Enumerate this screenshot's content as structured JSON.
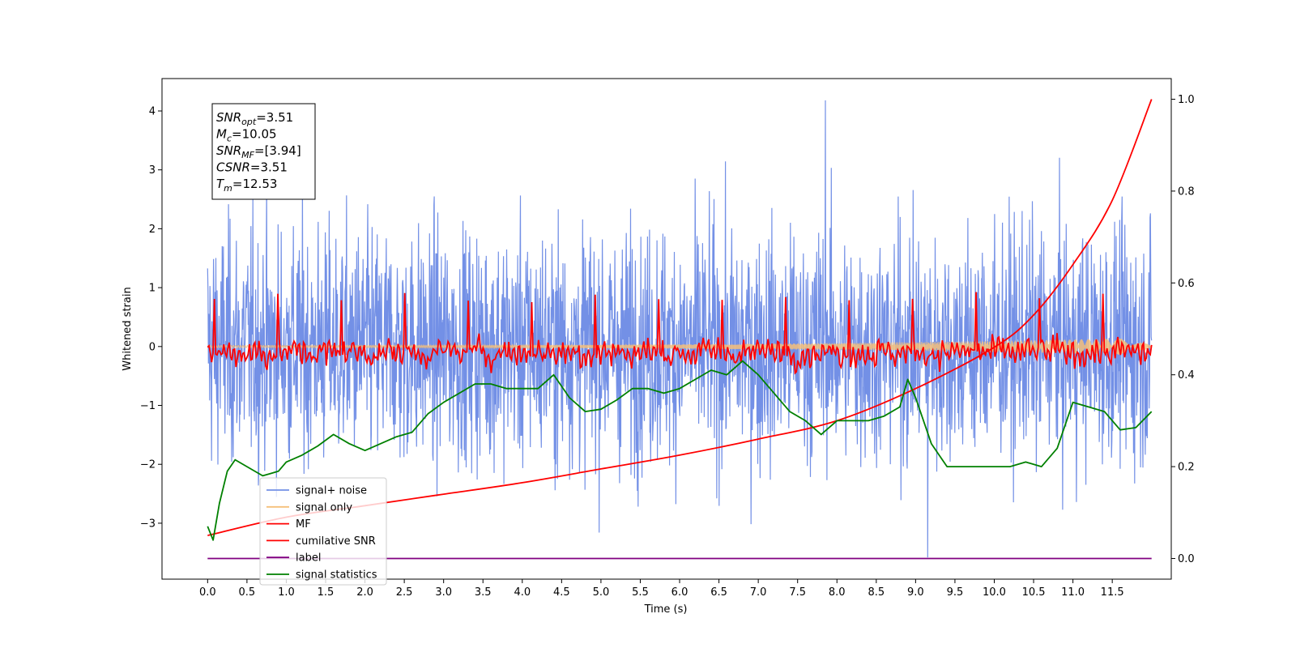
{
  "chart_data": {
    "type": "line",
    "xlabel": "Time (s)",
    "ylabel": "Whitened strain",
    "x_ticks": [
      "0.0",
      "0.5",
      "1.0",
      "1.5",
      "2.0",
      "2.5",
      "3.0",
      "3.5",
      "4.0",
      "4.5",
      "5.0",
      "5.5",
      "6.0",
      "6.5",
      "7.0",
      "7.5",
      "8.0",
      "8.5",
      "9.0",
      "9.5",
      "10.0",
      "10.5",
      "11.0",
      "11.5"
    ],
    "y_ticks_left": [
      "−3",
      "−2",
      "−1",
      "0",
      "1",
      "2",
      "3",
      "4"
    ],
    "y_ticks_right": [
      "0.0",
      "0.2",
      "0.4",
      "0.6",
      "0.8",
      "1.0"
    ],
    "xlim": [
      -0.58,
      12.25
    ],
    "ylim_left": [
      -3.95,
      4.55
    ],
    "ylim_right": [
      -0.045,
      1.045
    ],
    "grid": false,
    "legend_position": "lower-left",
    "annotation": {
      "lines": [
        {
          "base": "SNR",
          "sub": "opt",
          "value": "=3.51"
        },
        {
          "base": "M",
          "sub": "c",
          "value": "=10.05"
        },
        {
          "base": "SNR",
          "sub": "MF",
          "value": "=[3.94]"
        },
        {
          "base": "CSNR",
          "sub": "",
          "value": "=3.51"
        },
        {
          "base": "T",
          "sub": "m",
          "value": "=12.53"
        }
      ]
    },
    "series": [
      {
        "name": "signal+ noise",
        "color": "#7390e6",
        "axis": "left",
        "x_range": [
          0.0,
          12.0
        ],
        "mean": 0.0,
        "spread": 1.0,
        "max": 4.18,
        "min": -3.58
      },
      {
        "name": "signal only",
        "color": "#f5c07a",
        "axis": "left",
        "x_range": [
          0.0,
          12.0
        ],
        "amplitude_start": 0.02,
        "amplitude_end": 0.15
      },
      {
        "name": "MF",
        "color": "#ff0000",
        "axis": "left",
        "x_range": [
          0.0,
          12.0
        ],
        "mean": -0.1,
        "max": 0.97,
        "min": -0.45
      },
      {
        "name": "cumilative SNR",
        "color": "#ff0000",
        "axis": "right",
        "x": [
          0.0,
          1.0,
          2.0,
          3.0,
          4.0,
          5.0,
          6.0,
          7.0,
          8.0,
          9.0,
          10.0,
          10.5,
          11.0,
          11.5,
          12.0
        ],
        "y": [
          0.05,
          0.09,
          0.115,
          0.14,
          0.165,
          0.195,
          0.225,
          0.26,
          0.3,
          0.37,
          0.46,
          0.53,
          0.64,
          0.78,
          1.0
        ]
      },
      {
        "name": "label",
        "color": "#800080",
        "axis": "right",
        "x": [
          0.0,
          12.0
        ],
        "y": [
          0.0,
          0.0
        ]
      },
      {
        "name": "signal statistics",
        "color": "#008000",
        "axis": "right",
        "x": [
          0.0,
          0.07,
          0.15,
          0.25,
          0.35,
          0.5,
          0.7,
          0.8,
          0.9,
          1.0,
          1.2,
          1.4,
          1.6,
          1.8,
          2.0,
          2.2,
          2.4,
          2.6,
          2.8,
          3.0,
          3.2,
          3.4,
          3.6,
          3.8,
          4.0,
          4.2,
          4.4,
          4.6,
          4.8,
          5.0,
          5.2,
          5.4,
          5.6,
          5.8,
          6.0,
          6.2,
          6.4,
          6.6,
          6.8,
          7.0,
          7.2,
          7.4,
          7.6,
          7.8,
          8.0,
          8.2,
          8.4,
          8.6,
          8.8,
          8.9,
          9.0,
          9.2,
          9.4,
          9.6,
          9.8,
          10.0,
          10.2,
          10.4,
          10.6,
          10.8,
          11.0,
          11.2,
          11.4,
          11.6,
          11.8,
          12.0
        ],
        "y": [
          0.07,
          0.04,
          0.12,
          0.19,
          0.215,
          0.2,
          0.18,
          0.185,
          0.19,
          0.21,
          0.225,
          0.245,
          0.27,
          0.25,
          0.235,
          0.25,
          0.265,
          0.275,
          0.315,
          0.34,
          0.36,
          0.38,
          0.38,
          0.37,
          0.37,
          0.37,
          0.4,
          0.35,
          0.32,
          0.325,
          0.345,
          0.37,
          0.37,
          0.36,
          0.37,
          0.39,
          0.41,
          0.4,
          0.43,
          0.4,
          0.36,
          0.32,
          0.3,
          0.27,
          0.3,
          0.3,
          0.3,
          0.31,
          0.33,
          0.39,
          0.35,
          0.25,
          0.2,
          0.2,
          0.2,
          0.2,
          0.2,
          0.21,
          0.2,
          0.24,
          0.34,
          0.33,
          0.32,
          0.28,
          0.285,
          0.32
        ]
      }
    ]
  }
}
